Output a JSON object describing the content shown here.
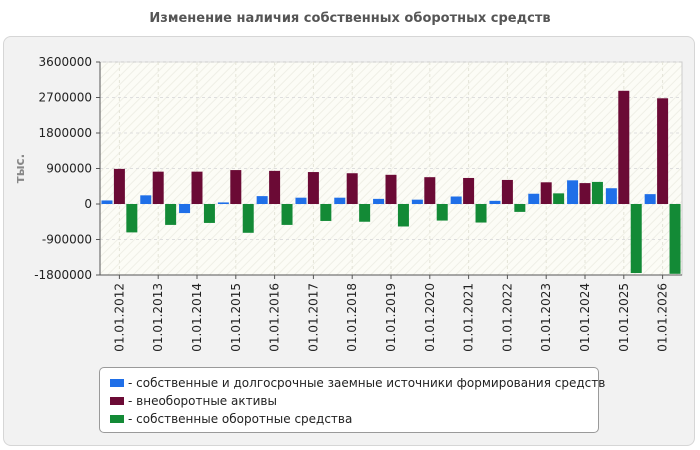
{
  "chart_data": {
    "type": "bar",
    "title": "Изменение наличия собственных оборотных средств",
    "ylabel": "тыс.",
    "xlabel": "",
    "ylim": [
      -1800000,
      3600000
    ],
    "yticks": [
      "3600000",
      "2700000",
      "1800000",
      "900000",
      "0",
      "-900000",
      "-1800000"
    ],
    "grid": true,
    "legend_position": "bottom",
    "categories": [
      "01.01.2012",
      "01.01.2013",
      "01.01.2014",
      "01.01.2015",
      "01.01.2016",
      "01.01.2017",
      "01.01.2018",
      "01.01.2019",
      "01.01.2020",
      "01.01.2021",
      "01.01.2022",
      "01.01.2023",
      "01.01.2024",
      "01.01.2025",
      "01.01.2026"
    ],
    "series": [
      {
        "name": "- собственные и долгосрочные заемные источники формирования средств",
        "color": "#1f6fe8",
        "values": [
          90000,
          220000,
          -230000,
          40000,
          200000,
          160000,
          160000,
          130000,
          110000,
          190000,
          80000,
          260000,
          600000,
          400000,
          250000
        ]
      },
      {
        "name": "- внеоборотные активы",
        "color": "#6b0a35",
        "values": [
          890000,
          820000,
          820000,
          860000,
          840000,
          810000,
          780000,
          740000,
          680000,
          660000,
          610000,
          550000,
          530000,
          2870000,
          2680000
        ]
      },
      {
        "name": "- собственные оборотные средства",
        "color": "#138a36",
        "values": [
          -720000,
          -530000,
          -480000,
          -730000,
          -530000,
          -430000,
          -450000,
          -570000,
          -420000,
          -470000,
          -200000,
          270000,
          560000,
          -1750000,
          -1770000
        ]
      }
    ]
  }
}
